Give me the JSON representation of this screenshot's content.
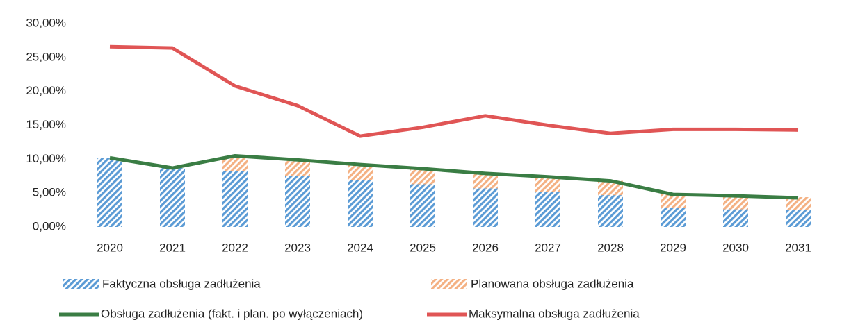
{
  "chart_data": {
    "type": "bar",
    "categories": [
      "2020",
      "2021",
      "2022",
      "2023",
      "2024",
      "2025",
      "2026",
      "2027",
      "2028",
      "2029",
      "2030",
      "2031"
    ],
    "series": [
      {
        "name": "Faktyczna obsługa zadłużenia",
        "type": "bar",
        "stack": true,
        "color": "#5b9bd5",
        "hatch": true,
        "values": [
          10.2,
          8.7,
          8.2,
          7.5,
          6.9,
          6.3,
          5.7,
          5.2,
          4.7,
          2.8,
          2.6,
          2.5
        ]
      },
      {
        "name": "Planowana obsługa zadłużenia",
        "type": "bar",
        "stack": true,
        "color": "#f4b183",
        "hatch": true,
        "values": [
          0,
          0,
          2.2,
          2.4,
          2.3,
          2.3,
          2.2,
          2.2,
          2.1,
          2.1,
          2.1,
          1.9
        ]
      },
      {
        "name": "Obsługa zadłużenia (fakt. i plan. po wyłączeniach)",
        "type": "line",
        "color": "#3a7d44",
        "values": [
          10.2,
          8.7,
          10.5,
          9.9,
          9.2,
          8.6,
          7.9,
          7.4,
          6.8,
          4.8,
          4.6,
          4.3
        ]
      },
      {
        "name": "Maksymalna obsługa zadłużenia",
        "type": "line",
        "color": "#e05555",
        "values": [
          26.6,
          26.4,
          20.8,
          17.9,
          13.4,
          14.7,
          16.4,
          15.0,
          13.8,
          14.4,
          14.4,
          14.3
        ]
      }
    ],
    "ylim": [
      0,
      30
    ],
    "yticks": [
      {
        "value": 0,
        "label": "0,00%"
      },
      {
        "value": 5,
        "label": "5,00%"
      },
      {
        "value": 10,
        "label": "10,00%"
      },
      {
        "value": 15,
        "label": "15,00%"
      },
      {
        "value": 20,
        "label": "20,00%"
      },
      {
        "value": 25,
        "label": "25,00%"
      },
      {
        "value": 30,
        "label": "30,00%"
      }
    ],
    "grid": false,
    "legend": "bottom"
  }
}
